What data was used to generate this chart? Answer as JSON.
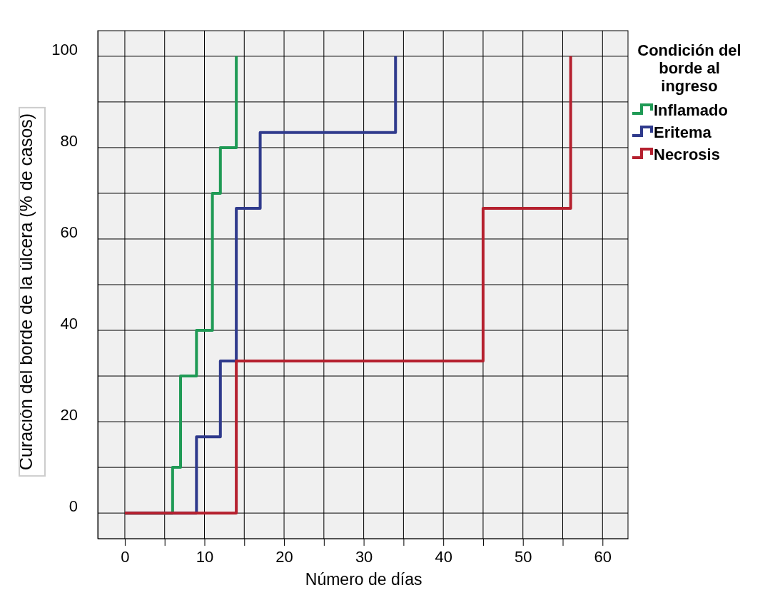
{
  "chart_data": {
    "type": "step",
    "xlabel": "Número de días",
    "ylabel": "Curación del borde de la úlcera (% de casos)",
    "legend_title": "Condición del borde al ingreso",
    "legend": "right",
    "grid": true,
    "line_style": "solid",
    "marker": "none",
    "xlim": [
      -3.4,
      63.2
    ],
    "ylim": [
      -5.6,
      105.6
    ],
    "xticks": [
      0,
      {
        "value": 5,
        "label": null
      },
      10,
      {
        "value": 15,
        "label": null
      },
      20,
      {
        "value": 25,
        "label": null
      },
      30,
      {
        "value": 35,
        "label": null
      },
      40,
      {
        "value": 45,
        "label": null
      },
      50,
      {
        "value": 55,
        "label": null
      },
      60
    ],
    "yticks": [
      0,
      {
        "value": 10,
        "label": null
      },
      20,
      {
        "value": 30,
        "label": null
      },
      40,
      {
        "value": 50,
        "label": null
      },
      60,
      {
        "value": 70,
        "label": null
      },
      80,
      {
        "value": 90,
        "label": null
      },
      100
    ],
    "series": [
      {
        "name": "Inflamado",
        "color": "#1f9a55",
        "x": [
          0,
          6,
          7,
          9,
          11,
          12,
          14
        ],
        "values": [
          0,
          10,
          30,
          40,
          70,
          80,
          100
        ]
      },
      {
        "name": "Eritema",
        "color": "#2f3a8c",
        "x": [
          0,
          9,
          12,
          14,
          17,
          34
        ],
        "values": [
          0,
          16.7,
          33.3,
          66.7,
          83.3,
          100
        ]
      },
      {
        "name": "Necrosis",
        "color": "#b5202e",
        "x": [
          0,
          14,
          45,
          56
        ],
        "values": [
          0,
          33.3,
          66.7,
          100
        ]
      }
    ]
  }
}
